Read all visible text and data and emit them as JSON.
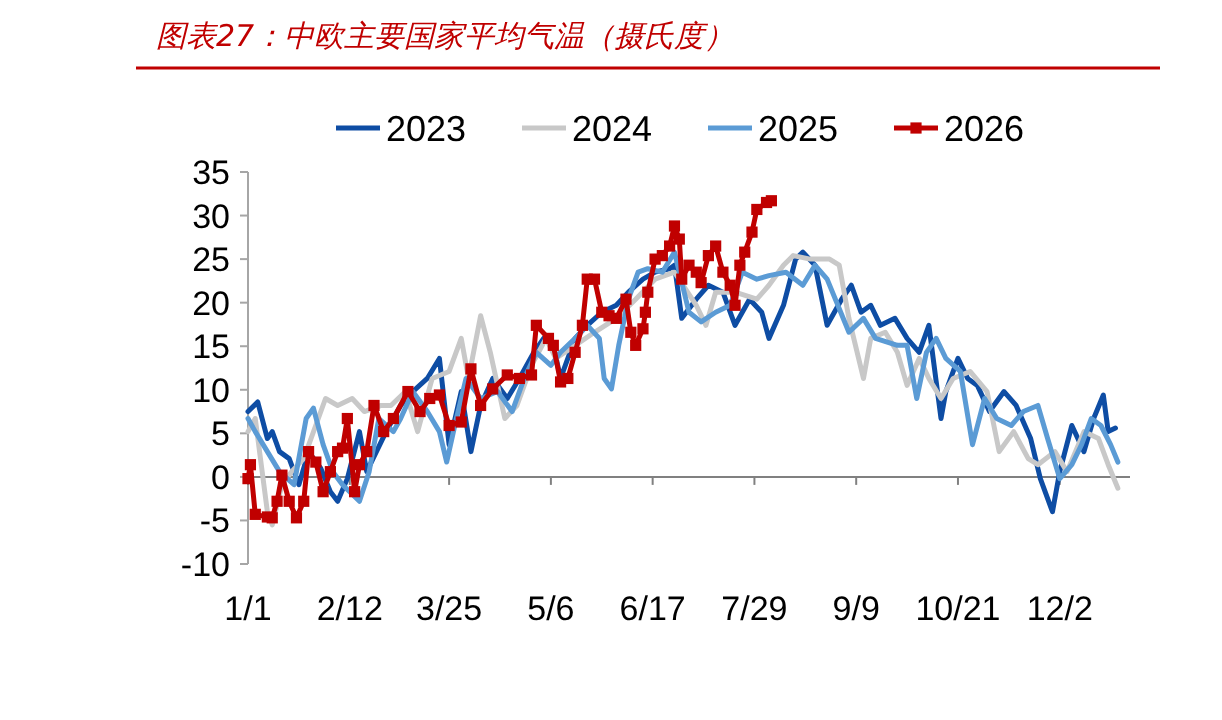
{
  "chart_data": {
    "type": "line",
    "title": "图表27：中欧主要国家平均气温（摄氏度）",
    "xlim": [
      "--01-01",
      "--12-31"
    ],
    "xticks": [
      {
        "value": "--01-01",
        "label": "1/1"
      },
      {
        "value": "--02-12",
        "label": "2/12"
      },
      {
        "value": "--03-25",
        "label": "3/25"
      },
      {
        "value": "--05-06",
        "label": "5/6"
      },
      {
        "value": "--06-17",
        "label": "6/17"
      },
      {
        "value": "--07-29",
        "label": "7/29"
      },
      {
        "value": "--09-09",
        "label": "9/9"
      },
      {
        "value": "--10-21",
        "label": "10/21"
      },
      {
        "value": "--12-02",
        "label": "12/2"
      }
    ],
    "ylim": [
      -10,
      35
    ],
    "yticks": [
      -10,
      -5,
      0,
      5,
      10,
      15,
      20,
      25,
      30,
      35
    ],
    "legend": "top",
    "series": [
      {
        "name": "2023",
        "color": "#0e4da4",
        "x": [
          "--01-01",
          "--01-05",
          "--01-09",
          "--01-11",
          "--01-14",
          "--01-18",
          "--01-22",
          "--01-26",
          "--01-31",
          "--02-04",
          "--02-07",
          "--02-11",
          "--02-16",
          "--02-19",
          "--02-23",
          "--02-27",
          "--03-05",
          "--03-10",
          "--03-16",
          "--03-21",
          "--03-25",
          "--03-30",
          "--04-03",
          "--04-07",
          "--04-12",
          "--04-18",
          "--04-23",
          "--04-29",
          "--05-03",
          "--05-07",
          "--05-10",
          "--05-16",
          "--05-21",
          "--05-27",
          "--06-02",
          "--06-07",
          "--06-13",
          "--06-18",
          "--06-24",
          "--06-26",
          "--06-29",
          "--07-05",
          "--07-10",
          "--07-16",
          "--07-21",
          "--07-27",
          "--08-01",
          "--08-04",
          "--08-10",
          "--08-15",
          "--08-18",
          "--08-23",
          "--08-28",
          "--09-03",
          "--09-07",
          "--09-11",
          "--09-15",
          "--09-19",
          "--09-25",
          "--09-30",
          "--10-05",
          "--10-09",
          "--10-14",
          "--10-16",
          "--10-21",
          "--10-25",
          "--10-29",
          "--11-03",
          "--11-09",
          "--11-14",
          "--11-20",
          "--11-24",
          "--11-29",
          "--12-02",
          "--12-07",
          "--12-12",
          "--12-16",
          "--12-20",
          "--12-22",
          "--12-25"
        ],
        "values": [
          7.5,
          8.6,
          4.4,
          5.2,
          2.9,
          2.1,
          -0.9,
          2.9,
          1,
          -1.7,
          -2.8,
          -0.2,
          5.2,
          0.6,
          2.9,
          5.2,
          8.2,
          9.8,
          11.3,
          13.6,
          3.7,
          9.8,
          2.9,
          8.2,
          11.3,
          9,
          11.3,
          14.3,
          15.9,
          15.1,
          11.3,
          15.9,
          17.4,
          18.9,
          19.7,
          21.2,
          22.7,
          23.5,
          23.9,
          24.3,
          18.2,
          20.4,
          22,
          21.2,
          17.4,
          20.4,
          18.9,
          15.9,
          19.7,
          25,
          25.8,
          24.3,
          17.4,
          20.4,
          22,
          18.9,
          19.7,
          17.4,
          18.2,
          15.9,
          14.3,
          17.4,
          6.7,
          9.8,
          13.6,
          11.3,
          10.5,
          7.5,
          9.8,
          8.2,
          4.4,
          -0.2,
          -4,
          0.6,
          5.9,
          2.9,
          6.7,
          9.4,
          5.2,
          5.6
        ]
      },
      {
        "name": "2024",
        "color": "#c8c8c8",
        "x": [
          "--01-01",
          "--01-04",
          "--01-09",
          "--01-11",
          "--01-15",
          "--01-19",
          "--01-24",
          "--02-02",
          "--02-07",
          "--02-13",
          "--02-18",
          "--02-25",
          "--03-01",
          "--03-07",
          "--03-12",
          "--03-18",
          "--03-25",
          "--03-30",
          "--04-02",
          "--04-07",
          "--04-11",
          "--04-17",
          "--04-22",
          "--04-28",
          "--05-04",
          "--05-08",
          "--05-16",
          "--05-24",
          "--06-02",
          "--06-10",
          "--06-18",
          "--06-26",
          "--07-05",
          "--07-09",
          "--07-13",
          "--07-21",
          "--07-30",
          "--08-04",
          "--08-10",
          "--08-14",
          "--08-21",
          "--08-29",
          "--09-02",
          "--09-06",
          "--09-12",
          "--09-15",
          "--09-21",
          "--09-26",
          "--09-30",
          "--10-05",
          "--10-09",
          "--10-14",
          "--10-19",
          "--10-26",
          "--11-02",
          "--11-07",
          "--11-13",
          "--11-19",
          "--11-23",
          "--11-30",
          "--12-05",
          "--12-12",
          "--12-18",
          "--12-22",
          "--12-26"
        ],
        "values": [
          5.2,
          6.7,
          -4,
          -5.5,
          -0.9,
          0.6,
          2.1,
          9,
          8.2,
          9,
          7.5,
          8.2,
          8.2,
          9.8,
          5.2,
          11.3,
          12.1,
          15.9,
          11.3,
          18.5,
          14.3,
          6.7,
          8.2,
          12.8,
          15.9,
          13.6,
          15.1,
          16.6,
          18.2,
          20.4,
          22.7,
          23.5,
          19.7,
          17.4,
          21.2,
          21.2,
          20.4,
          22,
          24.3,
          25.4,
          25,
          25,
          24.3,
          18.2,
          11.3,
          15.9,
          16.6,
          14.3,
          10.5,
          13.6,
          11.3,
          9,
          11.3,
          12.1,
          9.8,
          2.9,
          5.2,
          2.1,
          1.4,
          2.9,
          0.6,
          5.2,
          4.4,
          1.4,
          -1.3
        ]
      },
      {
        "name": "2025",
        "color": "#5b9bd5",
        "x": [
          "--01-01",
          "--01-04",
          "--01-09",
          "--01-14",
          "--01-20",
          "--01-25",
          "--01-28",
          "--02-01",
          "--02-05",
          "--02-09",
          "--02-16",
          "--02-20",
          "--02-24",
          "--03-02",
          "--03-05",
          "--03-10",
          "--03-16",
          "--03-21",
          "--03-24",
          "--03-28",
          "--04-01",
          "--04-07",
          "--04-14",
          "--04-20",
          "--04-25",
          "--04-30",
          "--05-06",
          "--05-10",
          "--05-16",
          "--05-21",
          "--05-26",
          "--05-28",
          "--05-31",
          "--06-03",
          "--06-07",
          "--06-11",
          "--06-15",
          "--06-21",
          "--06-26",
          "--07-02",
          "--07-07",
          "--07-13",
          "--07-19",
          "--07-24",
          "--07-30",
          "--08-04",
          "--08-11",
          "--08-18",
          "--08-23",
          "--08-28",
          "--09-06",
          "--09-12",
          "--09-17",
          "--09-26",
          "--09-30",
          "--10-04",
          "--10-08",
          "--10-12",
          "--10-16",
          "--10-22",
          "--10-27",
          "--11-01",
          "--11-06",
          "--11-12",
          "--11-17",
          "--11-23",
          "--11-27",
          "--12-02",
          "--12-07",
          "--12-11",
          "--12-15",
          "--12-19",
          "--12-23",
          "--12-26"
        ],
        "values": [
          6.7,
          5.2,
          2.9,
          0.6,
          -0.9,
          6.7,
          7.9,
          3.7,
          0.6,
          -0.9,
          -2.8,
          0.6,
          6.7,
          5.2,
          6.7,
          9.8,
          7.5,
          5.2,
          1.7,
          6.7,
          11.3,
          9,
          9.8,
          7.5,
          11.3,
          14.3,
          12.8,
          14.3,
          15.9,
          17.4,
          15.9,
          11.3,
          10.1,
          15.1,
          20.4,
          23.5,
          23.9,
          23.5,
          25.8,
          18.9,
          17.8,
          18.9,
          19.7,
          23.5,
          22.7,
          23.1,
          23.5,
          22,
          24.3,
          22.7,
          16.6,
          18.2,
          15.9,
          15.1,
          15.1,
          9,
          14.3,
          15.9,
          13.6,
          12.1,
          3.7,
          9,
          6.7,
          5.9,
          7.5,
          8.2,
          4.4,
          -0.2,
          1.4,
          3.7,
          6.7,
          5.9,
          3.7,
          1.7
        ]
      },
      {
        "name": "2026",
        "color": "#c00000",
        "marker": "square",
        "x": [
          "--01-01",
          "--01-02",
          "--01-04",
          "--01-09",
          "--01-11",
          "--01-13",
          "--01-15",
          "--01-18",
          "--01-21",
          "--01-24",
          "--01-26",
          "--01-29",
          "--02-01",
          "--02-04",
          "--02-07",
          "--02-09",
          "--02-11",
          "--02-14",
          "--02-16",
          "--02-19",
          "--02-22",
          "--02-26",
          "--03-02",
          "--03-08",
          "--03-13",
          "--03-17",
          "--03-21",
          "--03-25",
          "--03-30",
          "--04-03",
          "--04-07",
          "--04-12",
          "--04-18",
          "--04-23",
          "--04-28",
          "--04-30",
          "--05-05",
          "--05-07",
          "--05-10",
          "--05-13",
          "--05-16",
          "--05-19",
          "--05-21",
          "--05-24",
          "--05-27",
          "--05-30",
          "--06-02",
          "--06-06",
          "--06-08",
          "--06-10",
          "--06-13",
          "--06-14",
          "--06-15",
          "--06-18",
          "--06-21",
          "--06-24",
          "--06-26",
          "--06-28",
          "--06-29",
          "--07-02",
          "--07-05",
          "--07-07",
          "--07-10",
          "--07-13",
          "--07-16",
          "--07-19",
          "--07-21",
          "--07-23",
          "--07-25",
          "--07-28",
          "--07-30",
          "--08-03",
          "--08-05"
        ],
        "values": [
          -0.2,
          1.4,
          -4.3,
          -4.6,
          -4.7,
          -2.8,
          0.2,
          -2.8,
          -4.7,
          -2.8,
          2.9,
          1.7,
          -1.7,
          0.6,
          2.9,
          3.3,
          6.7,
          -1.7,
          1.4,
          2.9,
          8.2,
          5.2,
          6.7,
          9.8,
          7.5,
          9,
          9.4,
          5.9,
          6.3,
          12.4,
          8.2,
          10.1,
          11.7,
          11.3,
          11.7,
          17.4,
          15.9,
          15.1,
          10.9,
          11.3,
          14.3,
          17.4,
          22.7,
          22.7,
          18.9,
          18.5,
          18.2,
          20.4,
          16.6,
          15.1,
          17,
          18.9,
          21.2,
          25,
          25.4,
          26.5,
          28.8,
          27.3,
          22.7,
          24.3,
          23.5,
          22.3,
          25.4,
          26.5,
          23.5,
          22,
          19.7,
          24.3,
          25.8,
          28.1,
          30.7,
          31.5,
          31.7
        ]
      }
    ]
  }
}
